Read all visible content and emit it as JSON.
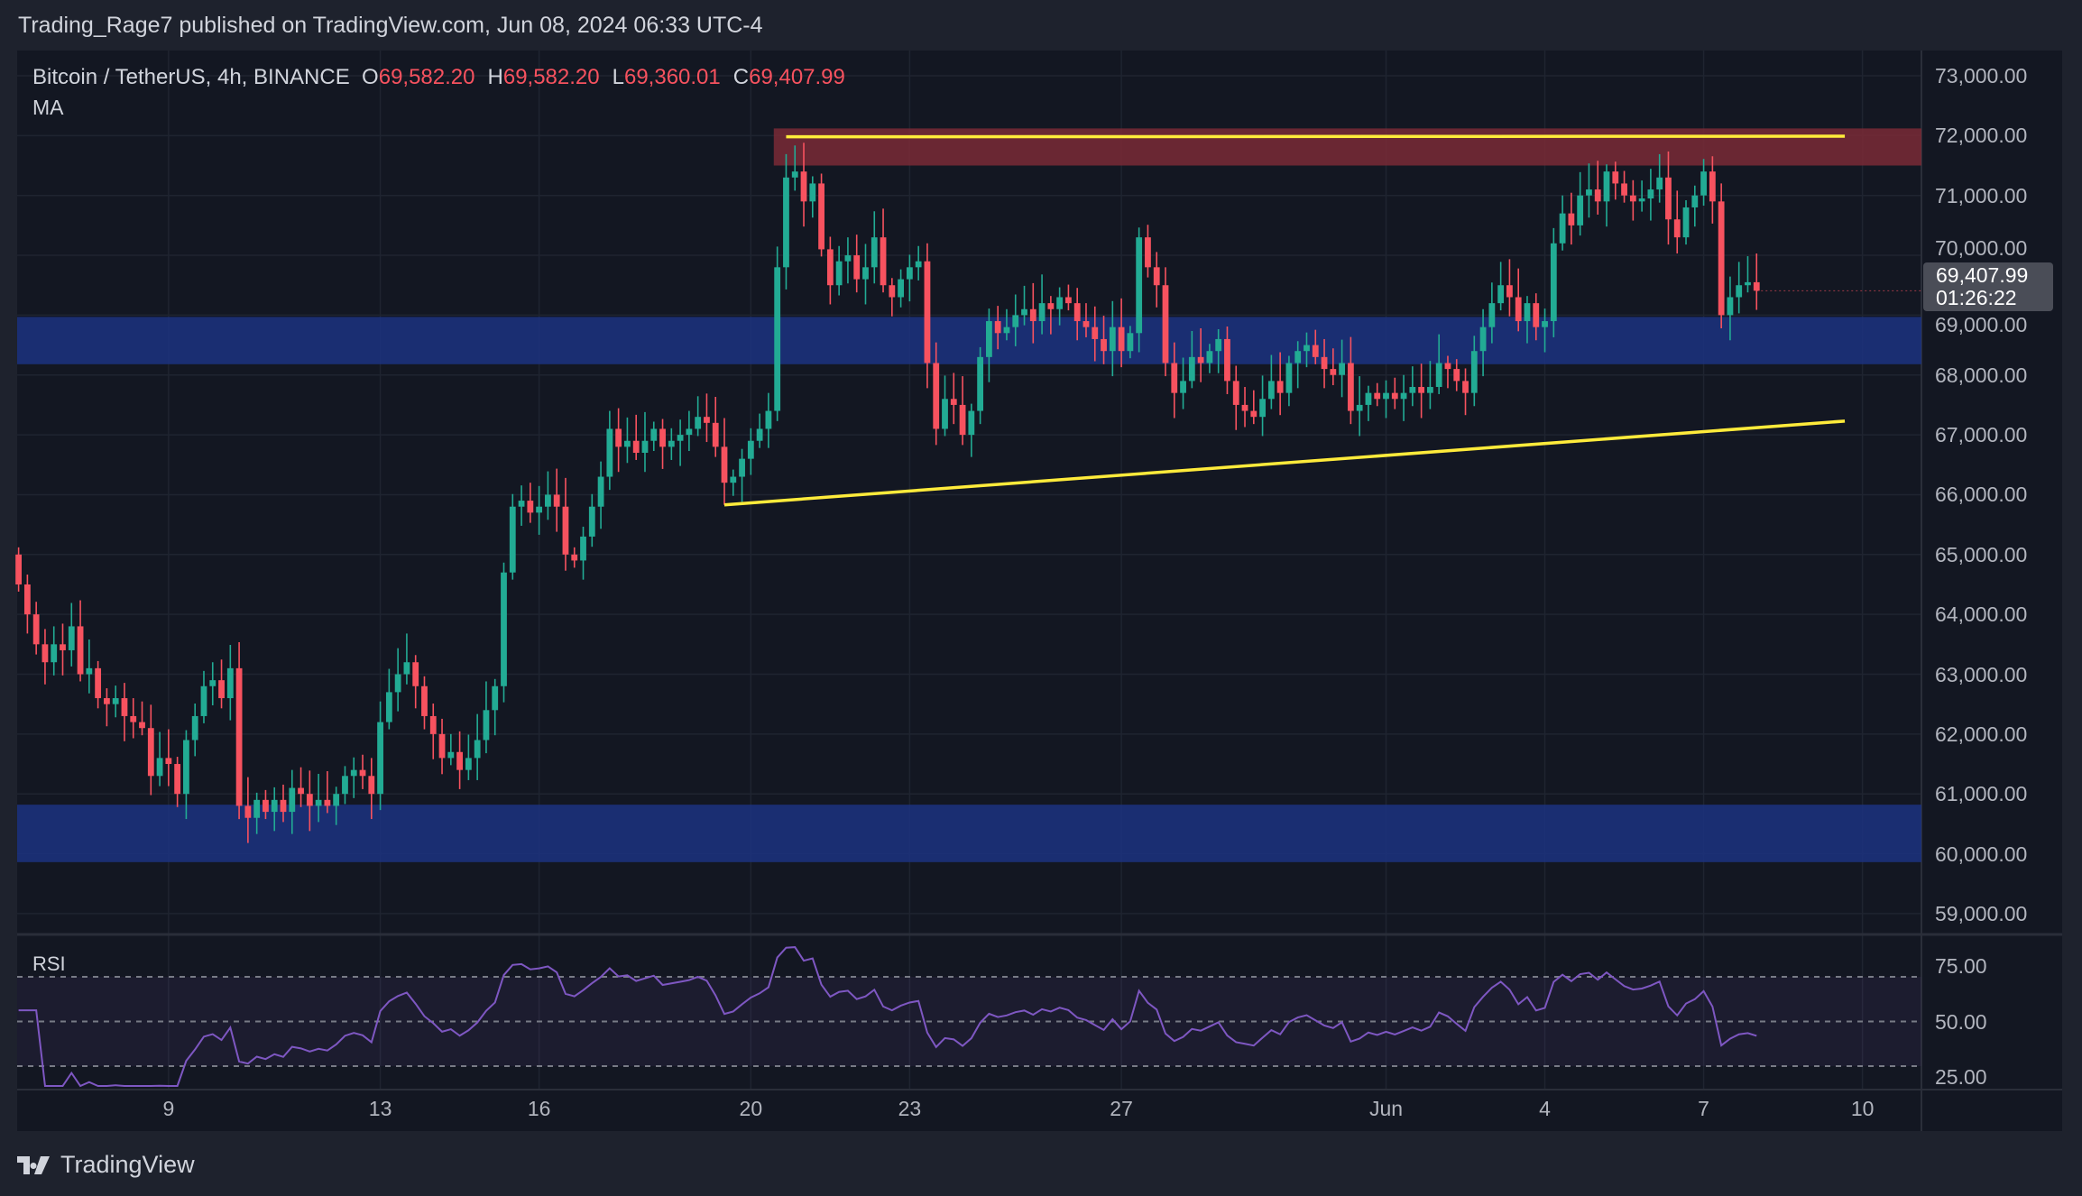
{
  "header": {
    "published": "Trading_Rage7 published on TradingView.com, Jun 08, 2024 06:33 UTC-4"
  },
  "legend": {
    "symbol": "Bitcoin / TetherUS, 4h, BINANCE",
    "o_label": "O",
    "o": "69,582.20",
    "h_label": "H",
    "h": "69,582.20",
    "l_label": "L",
    "l": "69,360.01",
    "c_label": "C",
    "c": "69,407.99",
    "ma": "MA"
  },
  "current": {
    "price": "69,407.99",
    "countdown": "01:26:22"
  },
  "footer": {
    "brand": "TradingView"
  },
  "colors": {
    "up": "#22ab94",
    "down": "#f7525f",
    "zone_blue": "#1c3380",
    "zone_red": "#7a2a36",
    "trendline": "#ffeb3b",
    "rsi": "#7e57c2"
  },
  "chart_data": {
    "type": "candlestick",
    "title": "Bitcoin / TetherUS, 4h, BINANCE",
    "first_open": 65000,
    "closes": [
      64500,
      64000,
      63500,
      63200,
      63500,
      63400,
      63800,
      63000,
      63100,
      62600,
      62500,
      62600,
      62300,
      62200,
      62100,
      61300,
      61600,
      61500,
      61000,
      61900,
      62300,
      62800,
      62900,
      62600,
      63100,
      60800,
      60600,
      60900,
      60700,
      60900,
      60700,
      61100,
      61000,
      60800,
      60900,
      60800,
      61000,
      61300,
      61400,
      61300,
      61000,
      62200,
      62700,
      63000,
      63200,
      62800,
      62300,
      62000,
      61600,
      61700,
      61400,
      61600,
      61900,
      62400,
      62800,
      64700,
      65800,
      65900,
      65700,
      65800,
      66000,
      65800,
      65000,
      64900,
      65300,
      65800,
      66300,
      67100,
      66800,
      66900,
      66700,
      66900,
      67100,
      66800,
      66900,
      67000,
      67100,
      67300,
      67200,
      66800,
      66200,
      66300,
      66600,
      66900,
      67100,
      67400,
      69800,
      71300,
      71400,
      70900,
      71200,
      70100,
      69500,
      69900,
      70000,
      69600,
      69800,
      70300,
      69500,
      69300,
      69600,
      69800,
      69900,
      68200,
      67100,
      67600,
      67500,
      67000,
      67400,
      68300,
      68900,
      68700,
      68800,
      69000,
      69100,
      68900,
      69200,
      69100,
      69300,
      69200,
      68900,
      68800,
      68600,
      68400,
      68800,
      68400,
      68700,
      70300,
      69800,
      69500,
      68200,
      67700,
      67900,
      68300,
      68200,
      68400,
      68600,
      67900,
      67500,
      67400,
      67300,
      67600,
      67900,
      67700,
      68200,
      68400,
      68500,
      68300,
      68100,
      68000,
      68200,
      67400,
      67500,
      67700,
      67600,
      67700,
      67600,
      67700,
      67800,
      67700,
      67800,
      68200,
      68100,
      67900,
      67700,
      68400,
      68800,
      69200,
      69500,
      69300,
      68900,
      69200,
      68800,
      68900,
      70200,
      70700,
      70500,
      71000,
      71100,
      70900,
      71400,
      71200,
      71000,
      70900,
      70950,
      71100,
      71300,
      70600,
      70300,
      70800,
      71000,
      71400,
      70900,
      69000,
      69300,
      69500,
      69550,
      69407.99
    ],
    "price_axis": {
      "ticks": [
        "73,000.00",
        "72,000.00",
        "71,000.00",
        "70,000.00",
        "69,000.00",
        "68,000.00",
        "67,000.00",
        "66,000.00",
        "65,000.00",
        "64,000.00",
        "63,000.00",
        "62,000.00",
        "61,000.00",
        "60,000.00",
        "59,000.00"
      ],
      "range": [
        58700,
        73300
      ]
    },
    "time_axis": {
      "ticks": [
        "9",
        "13",
        "16",
        "20",
        "23",
        "27",
        "Jun",
        "4",
        "7",
        "10"
      ],
      "tick_candle_index": [
        17,
        41,
        59,
        83,
        101,
        125,
        155,
        173,
        191,
        209
      ]
    },
    "zones": [
      {
        "type": "resistance",
        "from": 71500,
        "to": 72120
      },
      {
        "type": "support",
        "from": 68180,
        "to": 68970
      },
      {
        "type": "support",
        "from": 59860,
        "to": 60820
      }
    ],
    "trendlines": [
      {
        "from": [
          87,
          71980
        ],
        "to": [
          207,
          71990
        ]
      },
      {
        "from": [
          80,
          65830
        ],
        "to": [
          207,
          67230
        ]
      }
    ],
    "rsi": {
      "label": "RSI",
      "period": 14,
      "levels": [
        70,
        50,
        30
      ],
      "ticks": [
        "75.00",
        "50.00",
        "25.00"
      ]
    }
  }
}
